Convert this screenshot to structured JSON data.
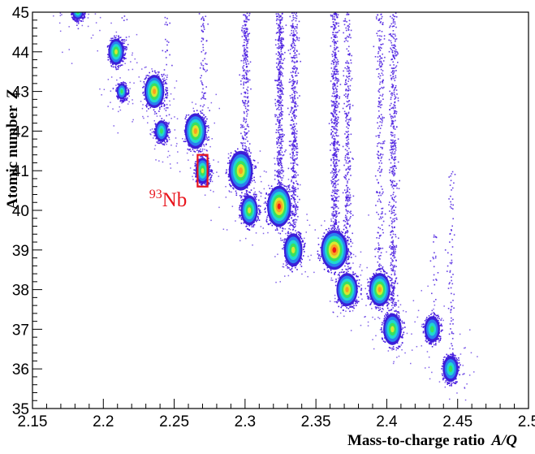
{
  "chart_data": {
    "type": "heatmap",
    "title": "",
    "xlabel": "Mass-to-charge ratio",
    "xlabel_symbol": "A/Q",
    "ylabel": "Atomic number",
    "ylabel_symbol": "Z",
    "xlim": [
      2.15,
      2.5
    ],
    "ylim": [
      35,
      45
    ],
    "x_ticks": [
      "2.15",
      "2.2",
      "2.25",
      "2.3",
      "2.35",
      "2.4",
      "2.45",
      "2.5"
    ],
    "y_ticks": [
      "35",
      "36",
      "37",
      "38",
      "39",
      "40",
      "41",
      "42",
      "43",
      "44",
      "45"
    ],
    "grid": false,
    "colorscale": [
      "#3c1ed8",
      "#2a7ef0",
      "#1fd8d0",
      "#38e060",
      "#d8e830",
      "#f8a020",
      "#f01818"
    ],
    "peaks": [
      {
        "x": 2.182,
        "z": 45.0,
        "intensity": 0.35,
        "rx": 0.004,
        "ry": 0.18
      },
      {
        "x": 2.209,
        "z": 44.0,
        "intensity": 0.55,
        "rx": 0.0055,
        "ry": 0.33
      },
      {
        "x": 2.213,
        "z": 43.0,
        "intensity": 0.35,
        "rx": 0.0035,
        "ry": 0.2
      },
      {
        "x": 2.236,
        "z": 43.0,
        "intensity": 0.7,
        "rx": 0.007,
        "ry": 0.42
      },
      {
        "x": 2.241,
        "z": 42.0,
        "intensity": 0.45,
        "rx": 0.0045,
        "ry": 0.27
      },
      {
        "x": 2.265,
        "z": 42.0,
        "intensity": 0.8,
        "rx": 0.0075,
        "ry": 0.45
      },
      {
        "x": 2.27,
        "z": 41.0,
        "intensity": 0.5,
        "rx": 0.005,
        "ry": 0.33
      },
      {
        "x": 2.297,
        "z": 41.0,
        "intensity": 0.85,
        "rx": 0.0085,
        "ry": 0.5
      },
      {
        "x": 2.303,
        "z": 40.0,
        "intensity": 0.6,
        "rx": 0.006,
        "ry": 0.38
      },
      {
        "x": 2.324,
        "z": 40.1,
        "intensity": 1.0,
        "rx": 0.0085,
        "ry": 0.52
      },
      {
        "x": 2.334,
        "z": 39.0,
        "intensity": 0.65,
        "rx": 0.0065,
        "ry": 0.42
      },
      {
        "x": 2.363,
        "z": 39.0,
        "intensity": 0.95,
        "rx": 0.0095,
        "ry": 0.5
      },
      {
        "x": 2.372,
        "z": 38.0,
        "intensity": 0.75,
        "rx": 0.0075,
        "ry": 0.42
      },
      {
        "x": 2.395,
        "z": 38.0,
        "intensity": 0.7,
        "rx": 0.0075,
        "ry": 0.42
      },
      {
        "x": 2.404,
        "z": 37.0,
        "intensity": 0.6,
        "rx": 0.0065,
        "ry": 0.4
      },
      {
        "x": 2.432,
        "z": 37.0,
        "intensity": 0.45,
        "rx": 0.0055,
        "ry": 0.33
      },
      {
        "x": 2.445,
        "z": 36.0,
        "intensity": 0.45,
        "rx": 0.0055,
        "ry": 0.33
      }
    ],
    "vertical_streaks": [
      {
        "x": 2.182,
        "z_from": 44.6,
        "z_to": 45.0,
        "density": 0.25
      },
      {
        "x": 2.215,
        "z_from": 43.6,
        "z_to": 45.0,
        "density": 0.12
      },
      {
        "x": 2.244,
        "z_from": 42.4,
        "z_to": 45.0,
        "density": 0.12
      },
      {
        "x": 2.27,
        "z_from": 41.4,
        "z_to": 45.0,
        "density": 0.25
      },
      {
        "x": 2.3,
        "z_from": 41.4,
        "z_to": 45.0,
        "density": 0.7
      },
      {
        "x": 2.324,
        "z_from": 40.5,
        "z_to": 45.0,
        "density": 1.0
      },
      {
        "x": 2.334,
        "z_from": 39.5,
        "z_to": 45.0,
        "density": 0.8
      },
      {
        "x": 2.363,
        "z_from": 39.4,
        "z_to": 45.0,
        "density": 1.0
      },
      {
        "x": 2.372,
        "z_from": 38.4,
        "z_to": 45.0,
        "density": 0.5
      },
      {
        "x": 2.395,
        "z_from": 38.4,
        "z_to": 45.0,
        "density": 0.35
      },
      {
        "x": 2.404,
        "z_from": 37.4,
        "z_to": 45.0,
        "density": 0.6
      },
      {
        "x": 2.433,
        "z_from": 37.3,
        "z_to": 39.5,
        "density": 0.12
      },
      {
        "x": 2.445,
        "z_from": 36.3,
        "z_to": 41.0,
        "density": 0.15
      }
    ],
    "annotation": {
      "mass_number": "93",
      "element": "Nb",
      "color": "#e8141c",
      "box_x": [
        2.2665,
        2.2735
      ],
      "box_z": [
        40.6,
        41.4
      ],
      "label_x": 2.259,
      "label_z": 40.1
    }
  }
}
